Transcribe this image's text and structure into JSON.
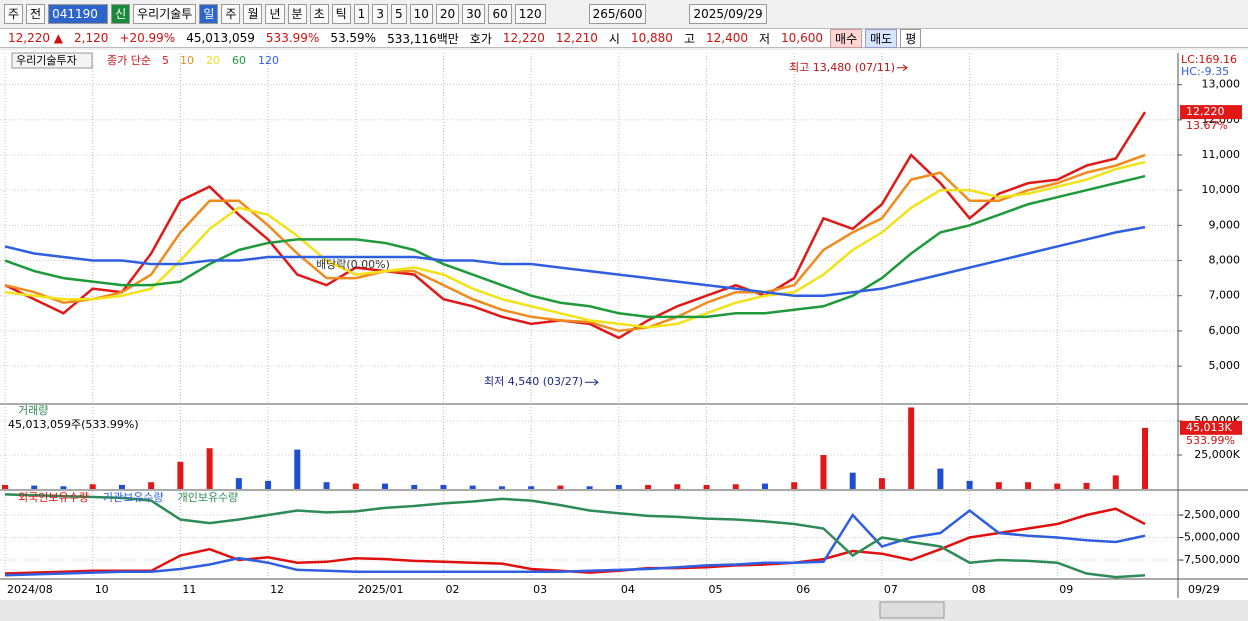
{
  "toolbar": {
    "items": [
      "주",
      "전"
    ],
    "code": "041190",
    "market_badge": "신",
    "name": "우리기술투",
    "periods": [
      "일",
      "주",
      "월",
      "년",
      "분",
      "초",
      "틱"
    ],
    "intervals": [
      "1",
      "3",
      "5",
      "10",
      "20",
      "30",
      "60",
      "120"
    ],
    "count": "265",
    "count_total": "/600",
    "date": "2025/09/29"
  },
  "quote": {
    "price": "12,220 ▲",
    "change": "2,120",
    "change_rate": "+20.99%",
    "volume": "45,013,059",
    "volume_rate": "533.99%",
    "turnover_rate": "53.59%",
    "amount": "533,116백만",
    "ask_label": "호가",
    "ask": "12,220",
    "bid": "12,210",
    "open_label": "시",
    "open": "10,880",
    "high_label": "고",
    "high": "12,400",
    "low_label": "저",
    "low": "10,600",
    "buy": "매수",
    "sell": "매도",
    "avg": "평"
  },
  "chart_data": [
    {
      "type": "line",
      "title": "우리기술투자",
      "legend_prefix": "종가 단순",
      "categories": [
        "2024/08",
        null,
        null,
        "10",
        null,
        null,
        "11",
        null,
        null,
        "12",
        null,
        null,
        "2025/01",
        null,
        null,
        "02",
        null,
        null,
        "03",
        null,
        null,
        "04",
        null,
        null,
        "05",
        null,
        null,
        "06",
        null,
        null,
        "07",
        null,
        null,
        "08",
        null,
        null,
        "09",
        null,
        null,
        null
      ],
      "end_date": "09/29",
      "series": [
        {
          "name": "5",
          "color": "#e01818",
          "values": [
            7300,
            6900,
            6500,
            7200,
            7100,
            8200,
            9700,
            10100,
            9300,
            8600,
            7600,
            7300,
            7800,
            7700,
            7600,
            6900,
            6700,
            6400,
            6200,
            6300,
            6200,
            5800,
            6300,
            6700,
            7000,
            7300,
            7000,
            7500,
            9200,
            8900,
            9600,
            11000,
            10200,
            9200,
            9900,
            10200,
            10300,
            10700,
            10900,
            12220
          ]
        },
        {
          "name": "10",
          "color": "#f08a1c",
          "values": [
            7300,
            7100,
            6800,
            6900,
            7100,
            7600,
            8800,
            9700,
            9700,
            9000,
            8200,
            7500,
            7500,
            7700,
            7700,
            7300,
            6900,
            6600,
            6400,
            6300,
            6250,
            6000,
            6100,
            6400,
            6800,
            7100,
            7100,
            7300,
            8300,
            8800,
            9200,
            10300,
            10500,
            9700,
            9700,
            10000,
            10200,
            10500,
            10700,
            11000
          ]
        },
        {
          "name": "20",
          "color": "#f2e21a",
          "values": [
            7100,
            7000,
            6900,
            6900,
            7000,
            7200,
            8000,
            8900,
            9500,
            9300,
            8700,
            8000,
            7600,
            7700,
            7800,
            7600,
            7200,
            6900,
            6700,
            6500,
            6300,
            6200,
            6100,
            6200,
            6500,
            6800,
            7000,
            7100,
            7600,
            8300,
            8800,
            9500,
            10000,
            10000,
            9800,
            9900,
            10100,
            10300,
            10600,
            10800
          ]
        },
        {
          "name": "60",
          "color": "#1f9a3a",
          "values": [
            8000,
            7700,
            7500,
            7400,
            7300,
            7300,
            7400,
            7900,
            8300,
            8500,
            8600,
            8600,
            8600,
            8500,
            8300,
            7900,
            7600,
            7300,
            7000,
            6800,
            6700,
            6500,
            6400,
            6400,
            6400,
            6500,
            6500,
            6600,
            6700,
            7000,
            7500,
            8200,
            8800,
            9000,
            9300,
            9600,
            9800,
            10000,
            10200,
            10400
          ]
        },
        {
          "name": "120",
          "color": "#2f5fe0",
          "values": [
            8400,
            8200,
            8100,
            8000,
            8000,
            7900,
            7900,
            8000,
            8000,
            8100,
            8100,
            8100,
            8100,
            8100,
            8100,
            8000,
            8000,
            7900,
            7900,
            7800,
            7700,
            7600,
            7500,
            7400,
            7300,
            7200,
            7100,
            7000,
            7000,
            7100,
            7200,
            7400,
            7600,
            7800,
            8000,
            8200,
            8400,
            8600,
            8800,
            8950
          ]
        }
      ],
      "ylim": [
        3950,
        13900
      ],
      "yticks": [
        {
          "value": 5000,
          "label": "5,000"
        },
        {
          "value": 6000,
          "label": "6,000"
        },
        {
          "value": 7000,
          "label": "7,000"
        },
        {
          "value": 8000,
          "label": "8,000"
        },
        {
          "value": 9000,
          "label": "9,000"
        },
        {
          "value": 10000,
          "label": "10,000"
        },
        {
          "value": 11000,
          "label": "11,000"
        },
        {
          "value": 12000,
          "label": "12,000"
        },
        {
          "value": 13000,
          "label": "13,000"
        }
      ],
      "grid": true,
      "annotations": {
        "high_label": "최고 13,480 (07/11)",
        "high_value": 13480,
        "low_label": "최저 4,540 (03/27)",
        "low_value": 4540,
        "dividend": "배당락(0.00%)",
        "lc": "LC:169.16",
        "hc": "HC:-9.35",
        "last": {
          "value": 12220,
          "label": "12,220"
        },
        "last_change": "13.67%"
      }
    },
    {
      "type": "bar",
      "title": "거래량",
      "subtitle": "45,013,059주(533.99%)",
      "values": [
        3000,
        2500,
        2000,
        3500,
        3000,
        5000,
        20000,
        30000,
        8000,
        6000,
        29000,
        5000,
        4000,
        4000,
        3000,
        3000,
        2500,
        2000,
        2000,
        2500,
        2000,
        3000,
        3000,
        3500,
        3000,
        3500,
        4000,
        5000,
        25000,
        12000,
        8000,
        60000,
        15000,
        6000,
        5000,
        5000,
        4000,
        4500,
        10000,
        45013
      ],
      "up_color": "#e01818",
      "down_color": "#1f4fd0",
      "ylim": [
        0,
        61800
      ],
      "yticks": [
        {
          "value": 25000,
          "label": "25,000K"
        },
        {
          "value": 50000,
          "label": "50,000K"
        }
      ],
      "last": {
        "value": 45013,
        "label": "45,013K"
      },
      "last_rate": "533.99%"
    },
    {
      "type": "line",
      "series": [
        {
          "name": "외국인보유수량",
          "color": "#e01010",
          "values": [
            -9000000,
            -8900000,
            -8800000,
            -8700000,
            -8700000,
            -8700000,
            -7000000,
            -6300000,
            -7500000,
            -7200000,
            -7800000,
            -7700000,
            -7300000,
            -7400000,
            -7600000,
            -7700000,
            -7800000,
            -7900000,
            -8500000,
            -8700000,
            -8900000,
            -8700000,
            -8400000,
            -8400000,
            -8300000,
            -8100000,
            -8000000,
            -7800000,
            -7400000,
            -6500000,
            -6800000,
            -7500000,
            -6300000,
            -5000000,
            -4500000,
            -4000000,
            -3500000,
            -2500000,
            -1800000,
            -3500000
          ]
        },
        {
          "name": "기관보유수량",
          "color": "#2f5fe0",
          "values": [
            -9200000,
            -9100000,
            -9000000,
            -8900000,
            -8800000,
            -8800000,
            -8500000,
            -8000000,
            -7300000,
            -7800000,
            -8600000,
            -8700000,
            -8800000,
            -8800000,
            -8800000,
            -8800000,
            -8800000,
            -8800000,
            -8800000,
            -8800000,
            -8700000,
            -8600000,
            -8500000,
            -8300000,
            -8100000,
            -8000000,
            -7800000,
            -7800000,
            -7700000,
            -2500000,
            -6000000,
            -5000000,
            -4500000,
            -2000000,
            -4500000,
            -4800000,
            -5000000,
            -5300000,
            -5500000,
            -4800000
          ]
        },
        {
          "name": "개인보유수량",
          "color": "#2e8b57",
          "values": [
            -200000,
            -300000,
            -400000,
            -500000,
            -600000,
            -900000,
            -3000000,
            -3400000,
            -3000000,
            -2500000,
            -2000000,
            -2200000,
            -2100000,
            -1700000,
            -1500000,
            -1200000,
            -1000000,
            -700000,
            -900000,
            -1400000,
            -2000000,
            -2300000,
            -2600000,
            -2700000,
            -2900000,
            -3000000,
            -3200000,
            -3500000,
            -4000000,
            -7000000,
            -5000000,
            -5500000,
            -6000000,
            -7800000,
            -7500000,
            -7600000,
            -7800000,
            -9000000,
            -9400000,
            -9200000
          ]
        }
      ],
      "ylim": [
        -9500000,
        170000
      ],
      "yticks": [
        {
          "value": -2500000,
          "label": "-2,500,000"
        },
        {
          "value": -5000000,
          "label": "-5,000,000"
        },
        {
          "value": -7500000,
          "label": "-7,500,000"
        }
      ]
    }
  ]
}
